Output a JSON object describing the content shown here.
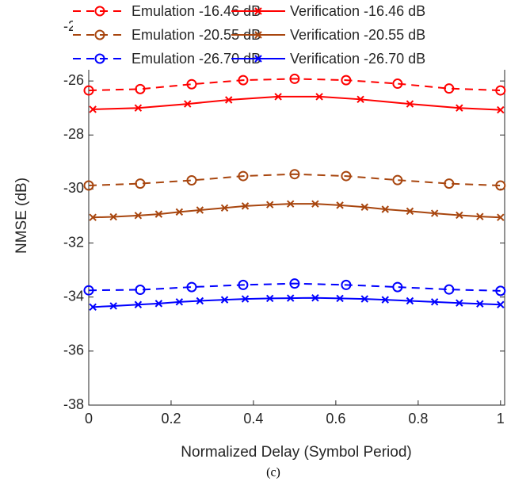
{
  "chart_data": {
    "type": "line",
    "xlabel": "Normalized Delay (Symbol Period)",
    "ylabel": "NMSE (dB)",
    "caption": "(c)",
    "xlim": [
      0,
      1.01
    ],
    "ylim": [
      -38,
      -24
    ],
    "xticks": [
      0,
      0.2,
      0.4,
      0.6,
      0.8,
      1
    ],
    "yticks": [
      -38,
      -36,
      -34,
      -32,
      -30,
      -28,
      -26,
      -24
    ],
    "legend": "top",
    "series": [
      {
        "name": "Emulation -16.46 dB",
        "color": "#ff0000",
        "dash": true,
        "marker": "circle",
        "x": [
          0,
          0.125,
          0.25,
          0.375,
          0.5,
          0.625,
          0.75,
          0.875,
          1
        ],
        "values": [
          -26.35,
          -26.3,
          -26.12,
          -25.97,
          -25.92,
          -25.97,
          -26.1,
          -26.28,
          -26.35
        ]
      },
      {
        "name": "Verification -16.46 dB",
        "color": "#ff0000",
        "dash": false,
        "marker": "x",
        "x": [
          0.01,
          0.12,
          0.24,
          0.34,
          0.46,
          0.56,
          0.66,
          0.78,
          0.9,
          1.0
        ],
        "values": [
          -27.05,
          -27.0,
          -26.85,
          -26.7,
          -26.58,
          -26.58,
          -26.68,
          -26.85,
          -27.0,
          -27.07
        ]
      },
      {
        "name": "Emulation -20.55 dB",
        "color": "#a8460f",
        "dash": true,
        "marker": "circle",
        "x": [
          0,
          0.125,
          0.25,
          0.375,
          0.5,
          0.625,
          0.75,
          0.875,
          1
        ],
        "values": [
          -29.87,
          -29.8,
          -29.68,
          -29.52,
          -29.45,
          -29.52,
          -29.67,
          -29.8,
          -29.87
        ]
      },
      {
        "name": "Verification -20.55 dB",
        "color": "#a8460f",
        "dash": false,
        "marker": "x",
        "x": [
          0.01,
          0.06,
          0.12,
          0.17,
          0.22,
          0.27,
          0.33,
          0.38,
          0.44,
          0.49,
          0.55,
          0.61,
          0.67,
          0.72,
          0.78,
          0.84,
          0.9,
          0.95,
          1.0
        ],
        "values": [
          -31.05,
          -31.03,
          -30.98,
          -30.93,
          -30.85,
          -30.78,
          -30.7,
          -30.63,
          -30.58,
          -30.55,
          -30.55,
          -30.6,
          -30.67,
          -30.75,
          -30.82,
          -30.9,
          -30.97,
          -31.02,
          -31.05
        ]
      },
      {
        "name": "Emulation -26.70 dB",
        "color": "#0000ff",
        "dash": true,
        "marker": "circle",
        "x": [
          0,
          0.125,
          0.25,
          0.375,
          0.5,
          0.625,
          0.75,
          0.875,
          1
        ],
        "values": [
          -33.75,
          -33.73,
          -33.63,
          -33.55,
          -33.5,
          -33.55,
          -33.63,
          -33.72,
          -33.77
        ]
      },
      {
        "name": "Verification -26.70 dB",
        "color": "#0000ff",
        "dash": false,
        "marker": "x",
        "x": [
          0.01,
          0.06,
          0.12,
          0.17,
          0.22,
          0.27,
          0.33,
          0.38,
          0.44,
          0.49,
          0.55,
          0.61,
          0.67,
          0.72,
          0.78,
          0.84,
          0.9,
          0.95,
          1.0
        ],
        "values": [
          -34.37,
          -34.33,
          -34.28,
          -34.24,
          -34.18,
          -34.14,
          -34.1,
          -34.07,
          -34.05,
          -34.04,
          -34.03,
          -34.05,
          -34.07,
          -34.1,
          -34.14,
          -34.18,
          -34.22,
          -34.25,
          -34.28
        ]
      }
    ]
  }
}
